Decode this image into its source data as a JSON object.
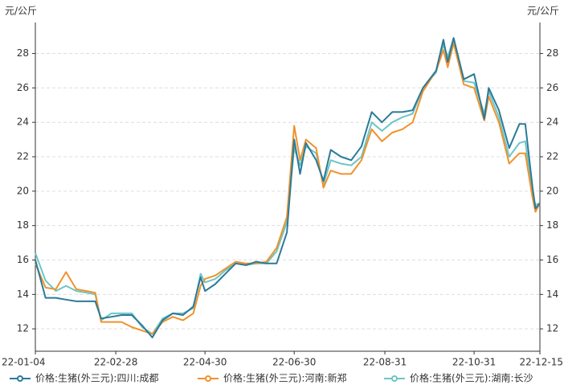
{
  "chart_data": {
    "type": "line",
    "y_unit_left": "元/公斤",
    "y_unit_right": "元/公斤",
    "x": [
      "22-01-04",
      "22-01-11",
      "22-01-18",
      "22-01-25",
      "22-02-01",
      "22-02-08",
      "22-02-14",
      "22-02-18",
      "22-02-25",
      "22-03-04",
      "22-03-11",
      "22-03-18",
      "22-03-25",
      "22-04-01",
      "22-04-08",
      "22-04-15",
      "22-04-22",
      "22-04-27",
      "22-04-30",
      "22-05-07",
      "22-05-14",
      "22-05-21",
      "22-05-28",
      "22-06-04",
      "22-06-11",
      "22-06-18",
      "22-06-25",
      "22-06-30",
      "22-07-04",
      "22-07-08",
      "22-07-15",
      "22-07-20",
      "22-07-25",
      "22-08-01",
      "22-08-08",
      "22-08-15",
      "22-08-22",
      "22-08-29",
      "22-09-05",
      "22-09-12",
      "22-09-19",
      "22-09-26",
      "22-10-05",
      "22-10-10",
      "22-10-13",
      "22-10-17",
      "22-10-24",
      "22-10-31",
      "22-11-07",
      "22-11-10",
      "22-11-17",
      "22-11-24",
      "22-12-01",
      "22-12-05",
      "22-12-10",
      "22-12-12",
      "22-12-15"
    ],
    "series": [
      {
        "name": "价格:生猪(外三元):四川:成都",
        "color": "#2b7a98",
        "values": [
          16.0,
          13.8,
          13.8,
          13.7,
          13.6,
          13.6,
          13.6,
          12.6,
          12.7,
          12.8,
          12.8,
          12.2,
          11.5,
          12.5,
          12.9,
          12.8,
          13.3,
          15.0,
          14.2,
          14.6,
          15.2,
          15.8,
          15.7,
          15.9,
          15.8,
          15.8,
          17.6,
          23.0,
          21.0,
          22.8,
          21.8,
          20.6,
          22.4,
          22.0,
          21.8,
          22.6,
          24.6,
          24.0,
          24.6,
          24.6,
          24.7,
          26.0,
          27.0,
          28.8,
          27.5,
          28.9,
          26.5,
          26.8,
          24.2,
          26.0,
          24.7,
          22.5,
          23.9,
          23.9,
          20.2,
          19.0,
          19.3
        ]
      },
      {
        "name": "价格:生猪(外三元):河南:新郑",
        "color": "#f0922c",
        "values": [
          15.8,
          14.4,
          14.3,
          15.3,
          14.3,
          14.2,
          14.1,
          12.4,
          12.4,
          12.4,
          12.1,
          11.9,
          11.7,
          12.4,
          12.7,
          12.5,
          12.9,
          14.5,
          14.9,
          15.1,
          15.5,
          15.9,
          15.8,
          15.8,
          15.9,
          16.7,
          18.5,
          23.8,
          21.8,
          23.0,
          22.5,
          20.2,
          21.2,
          21.0,
          21.0,
          21.8,
          23.6,
          22.9,
          23.4,
          23.6,
          24.0,
          25.8,
          27.0,
          28.2,
          27.2,
          28.6,
          26.2,
          26.0,
          24.1,
          25.5,
          24.0,
          21.6,
          22.2,
          22.2,
          19.6,
          18.8,
          19.3
        ]
      },
      {
        "name": "价格:生猪(外三元):湖南:长沙",
        "color": "#6cc6c6",
        "values": [
          16.4,
          14.8,
          14.2,
          14.5,
          14.2,
          14.1,
          14.0,
          12.5,
          12.9,
          12.9,
          12.9,
          12.1,
          11.7,
          12.6,
          12.9,
          12.9,
          13.2,
          15.2,
          14.7,
          14.9,
          15.4,
          15.8,
          15.7,
          15.8,
          15.8,
          16.5,
          18.2,
          22.5,
          21.5,
          22.6,
          22.2,
          20.4,
          21.8,
          21.6,
          21.5,
          22.0,
          24.0,
          23.5,
          24.0,
          24.3,
          24.5,
          26.0,
          26.9,
          28.5,
          27.8,
          28.9,
          26.4,
          26.3,
          24.5,
          25.8,
          24.3,
          22.0,
          22.8,
          22.9,
          19.8,
          19.2,
          19.3
        ]
      }
    ],
    "xlim": [
      "22-01-04",
      "22-12-15"
    ],
    "xticks": [
      "22-01-04",
      "22-02-28",
      "22-04-30",
      "22-06-30",
      "22-08-31",
      "22-10-31",
      "22-12-15"
    ],
    "ylim": [
      10.7,
      29.8
    ],
    "yticks": [
      12,
      14,
      16,
      18,
      20,
      22,
      24,
      26,
      28
    ],
    "grid": true,
    "legend": "bottom"
  }
}
